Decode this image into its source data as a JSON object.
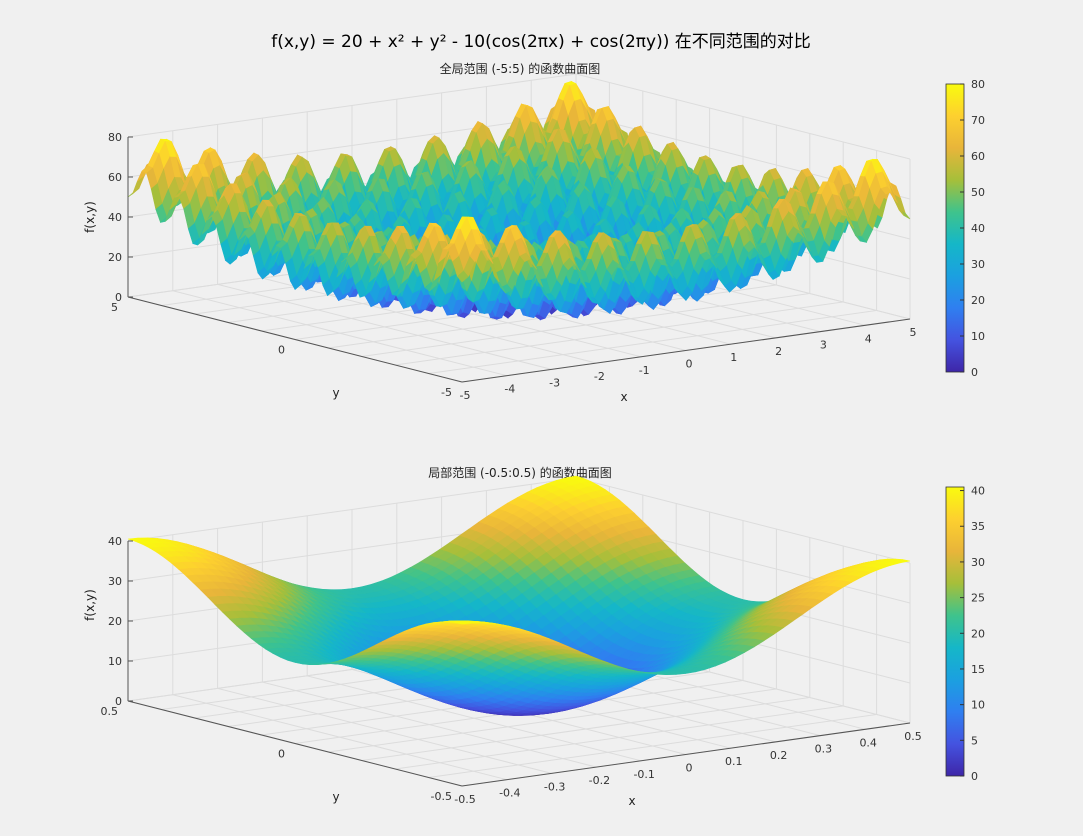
{
  "figure": {
    "suptitle": "f(x,y) = 20 + x² + y² - 10(cos(2πx) + cos(2πy)) 在不同范围的对比",
    "colormap": "parula",
    "colormap_stops": [
      "#3e26a8",
      "#4453e0",
      "#2f7ff0",
      "#1ba0e0",
      "#15b7c8",
      "#3fc38c",
      "#a6bf3a",
      "#e8b53a",
      "#fdd02f",
      "#f9fb0e"
    ],
    "background": "#f0f0f0"
  },
  "chart_data": [
    {
      "type": "surface",
      "function": "20 + x^2 + y^2 - 10*(cos(2*pi*x) + cos(2*pi*y))",
      "title": "全局范围 (-5:5) 的函数曲面图",
      "xlabel": "x",
      "ylabel": "y",
      "zlabel": "f(x,y)",
      "xlim": [
        -5,
        5
      ],
      "ylim": [
        -5,
        5
      ],
      "zlim": [
        0,
        80
      ],
      "xticks": [
        -5,
        -4,
        -3,
        -2,
        -1,
        0,
        1,
        2,
        3,
        4,
        5
      ],
      "xtick_labels": [
        "-5",
        "-4",
        "-3",
        "-2",
        "-1",
        "0",
        "1",
        "2",
        "3",
        "4",
        "5"
      ],
      "yticks": [
        -5,
        0,
        5
      ],
      "ytick_labels": [
        "-5",
        "0",
        "5"
      ],
      "zticks": [
        0,
        20,
        40,
        60,
        80
      ],
      "ztick_labels": [
        "0",
        "20",
        "40",
        "60",
        "80"
      ],
      "colorbar": {
        "range": [
          0,
          80
        ],
        "ticks": [
          0,
          10,
          20,
          30,
          40,
          50,
          60,
          70,
          80
        ],
        "tick_labels": [
          "0",
          "10",
          "20",
          "30",
          "40",
          "50",
          "60",
          "70",
          "80"
        ]
      },
      "grid": true,
      "view": {
        "azimuth": -37.5,
        "elevation": 30
      }
    },
    {
      "type": "surface",
      "function": "20 + x^2 + y^2 - 10*(cos(2*pi*x) + cos(2*pi*y))",
      "title": "局部范围 (-0.5:0.5) 的函数曲面图",
      "xlabel": "x",
      "ylabel": "y",
      "zlabel": "f(x,y)",
      "xlim": [
        -0.5,
        0.5
      ],
      "ylim": [
        -0.5,
        0.5
      ],
      "zlim": [
        0,
        40
      ],
      "xticks": [
        -0.5,
        -0.4,
        -0.3,
        -0.2,
        -0.1,
        0,
        0.1,
        0.2,
        0.3,
        0.4,
        0.5
      ],
      "xtick_labels": [
        "-0.5",
        "-0.4",
        "-0.3",
        "-0.2",
        "-0.1",
        "0",
        "0.1",
        "0.2",
        "0.3",
        "0.4",
        "0.5"
      ],
      "yticks": [
        -0.5,
        0,
        0.5
      ],
      "ytick_labels": [
        "-0.5",
        "0",
        "0.5"
      ],
      "zticks": [
        0,
        10,
        20,
        30,
        40
      ],
      "ztick_labels": [
        "0",
        "10",
        "20",
        "30",
        "40"
      ],
      "colorbar": {
        "range": [
          0,
          40.5
        ],
        "ticks": [
          0,
          5,
          10,
          15,
          20,
          25,
          30,
          35,
          40
        ],
        "tick_labels": [
          "0",
          "5",
          "10",
          "15",
          "20",
          "25",
          "30",
          "35",
          "40"
        ]
      },
      "grid": true,
      "view": {
        "azimuth": -37.5,
        "elevation": 30
      }
    }
  ]
}
